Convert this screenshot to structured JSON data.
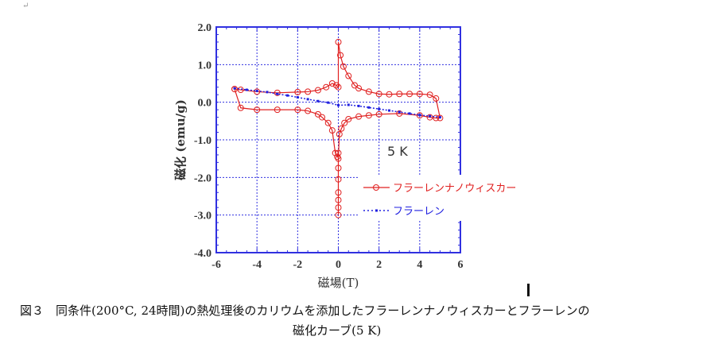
{
  "chart_data": {
    "type": "scatter",
    "xlabel": "磁場(T)",
    "ylabel": "磁化 (emu/g)",
    "xlim": [
      -6,
      6
    ],
    "ylim": [
      -4,
      2
    ],
    "xticks": [
      "-6",
      "-4",
      "-2",
      "0",
      "2",
      "4",
      "6"
    ],
    "yticks": [
      "2.0",
      "1.0",
      "0.0",
      "-1.0",
      "-2.0",
      "-3.0",
      "-4.0"
    ],
    "grid": true,
    "annotation": "5 K",
    "legend_position": "lower-right",
    "series": [
      {
        "name": "フラーレンナノウィスカー",
        "color": "#e02020",
        "marker": "circle",
        "x": [
          -5.1,
          -4.8,
          -4,
          -3,
          -2,
          -1.5,
          -1,
          -0.6,
          -0.3,
          -0.1,
          0,
          0,
          0.1,
          0.25,
          0.5,
          0.8,
          1,
          1.5,
          2,
          2.5,
          3,
          3.5,
          4,
          4.5,
          4.8,
          5,
          4.8,
          4.5,
          4,
          3,
          2,
          1.5,
          1,
          0.5,
          0.3,
          0.15,
          0.05,
          0,
          0,
          0,
          0,
          0,
          0,
          0,
          0,
          -0.05,
          -0.15,
          -0.3,
          -0.5,
          -0.8,
          -1,
          -1.5,
          -2,
          -3,
          -4,
          -4.8,
          -5.1
        ],
        "y": [
          0.35,
          0.33,
          0.28,
          0.25,
          0.27,
          0.28,
          0.32,
          0.4,
          0.5,
          0.45,
          0.4,
          1.6,
          1.25,
          0.95,
          0.7,
          0.45,
          0.37,
          0.28,
          0.22,
          0.21,
          0.22,
          0.22,
          0.22,
          0.2,
          0.1,
          -0.42,
          -0.42,
          -0.4,
          -0.35,
          -0.3,
          -0.32,
          -0.35,
          -0.38,
          -0.45,
          -0.55,
          -0.7,
          -0.85,
          -1.5,
          -2.05,
          -2.4,
          -2.6,
          -2.8,
          -3.0,
          -1.75,
          -1.35,
          -1.45,
          -1.35,
          -0.75,
          -0.55,
          -0.4,
          -0.32,
          -0.23,
          -0.2,
          -0.2,
          -0.2,
          -0.15,
          0.35
        ]
      },
      {
        "name": "フラーレン",
        "color": "#2020e0",
        "marker": "square",
        "x": [
          -5.1,
          -4.5,
          -4,
          -3.5,
          -3,
          -2.5,
          -2,
          -1.5,
          -1,
          -0.5,
          0,
          0.5,
          1,
          1.5,
          2,
          2.5,
          3,
          3.5,
          4,
          4.5,
          5
        ],
        "y": [
          0.37,
          0.33,
          0.3,
          0.27,
          0.22,
          0.18,
          0.13,
          0.08,
          0.03,
          -0.01,
          -0.08,
          -0.07,
          -0.1,
          -0.14,
          -0.18,
          -0.22,
          -0.26,
          -0.3,
          -0.34,
          -0.37,
          -0.4
        ]
      }
    ]
  },
  "caption": {
    "line1": "図３　同条件(200°C, 24時間)の熱処理後のカリウムを添加したフラーレンナノウィスカーとフラーレンの",
    "line2": "磁化カーブ(5 K)"
  }
}
